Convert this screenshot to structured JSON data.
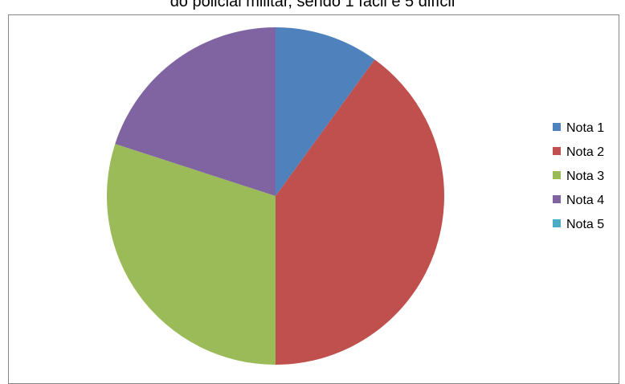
{
  "chart_data": {
    "type": "pie",
    "title": "do policial militar, sendo 1 fácil e 5 difícil",
    "categories": [
      "Nota 1",
      "Nota 2",
      "Nota 3",
      "Nota 4",
      "Nota 5"
    ],
    "values": [
      10,
      40,
      30,
      20,
      0
    ],
    "unit": "%",
    "start_angle_deg": 0,
    "direction": "clockwise",
    "colors": [
      "#4F81BD",
      "#C0504D",
      "#9BBB59",
      "#8064A2",
      "#4BACC6"
    ],
    "legend_position": "right"
  }
}
